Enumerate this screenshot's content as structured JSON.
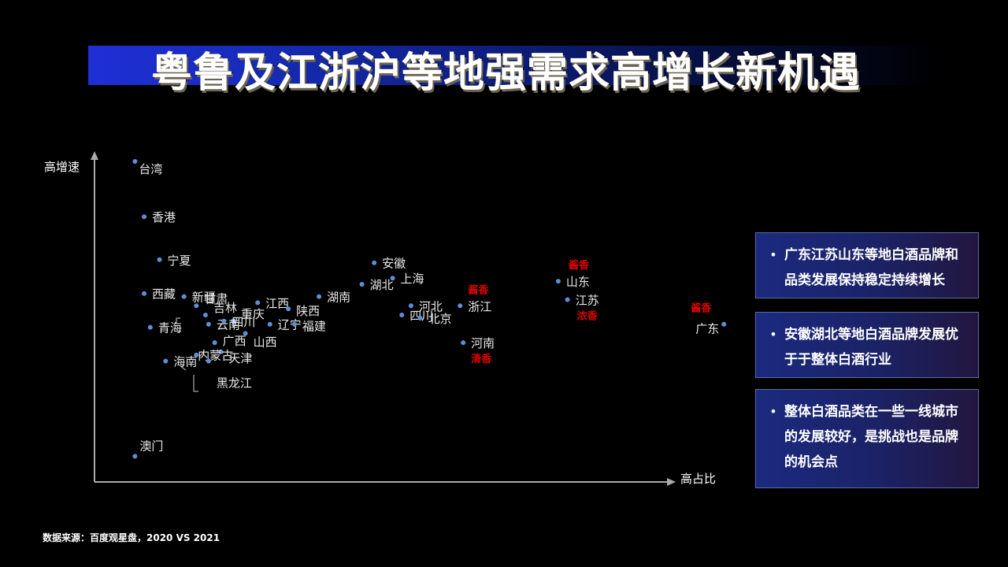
{
  "title": "粤鲁及江浙沪等地强需求高增长新机遇",
  "chart_data": {
    "type": "scatter",
    "xlabel": "高占比",
    "ylabel": "高增速",
    "xlim": [
      0,
      100
    ],
    "ylim": [
      0,
      100
    ],
    "points": [
      {
        "name": "台湾",
        "x": 3,
        "y": 100
      },
      {
        "name": "香港",
        "x": 4.5,
        "y": 82
      },
      {
        "name": "宁夏",
        "x": 7,
        "y": 68
      },
      {
        "name": "西藏",
        "x": 4.5,
        "y": 57
      },
      {
        "name": "新疆",
        "x": 11,
        "y": 56
      },
      {
        "name": "甘肃",
        "x": 13,
        "y": 53
      },
      {
        "name": "吉林",
        "x": 14.5,
        "y": 50
      },
      {
        "name": "重庆",
        "x": 19,
        "y": 48
      },
      {
        "name": "青海",
        "x": 5.5,
        "y": 46
      },
      {
        "name": "云南",
        "x": 15,
        "y": 47
      },
      {
        "name": "四川",
        "x": 17.5,
        "y": 48
      },
      {
        "name": "广西",
        "x": 16,
        "y": 41
      },
      {
        "name": "天津",
        "x": 17,
        "y": 38
      },
      {
        "name": "山西",
        "x": 21,
        "y": 44
      },
      {
        "name": "江西",
        "x": 23,
        "y": 54
      },
      {
        "name": "陕西",
        "x": 28,
        "y": 52
      },
      {
        "name": "辽宁",
        "x": 25,
        "y": 47
      },
      {
        "name": "福建",
        "x": 29,
        "y": 47
      },
      {
        "name": "湖南",
        "x": 33,
        "y": 56
      },
      {
        "name": "安徽",
        "x": 42,
        "y": 67
      },
      {
        "name": "湖北",
        "x": 40,
        "y": 60
      },
      {
        "name": "上海",
        "x": 45,
        "y": 62
      },
      {
        "name": "河北",
        "x": 48,
        "y": 53
      },
      {
        "name": "四川",
        "x": 46.5,
        "y": 50
      },
      {
        "name": "北京",
        "x": 49.5,
        "y": 49
      },
      {
        "name": "浙江",
        "x": 56,
        "y": 53
      },
      {
        "name": "河南",
        "x": 56.5,
        "y": 41
      },
      {
        "name": "山东",
        "x": 72,
        "y": 61
      },
      {
        "name": "江苏",
        "x": 73.5,
        "y": 55
      },
      {
        "name": "广东",
        "x": 99,
        "y": 47
      },
      {
        "name": "海南",
        "x": 8,
        "y": 35
      },
      {
        "name": "内蒙古",
        "x": 13,
        "y": 37
      },
      {
        "name": "黑龙江",
        "x": 15,
        "y": 35
      },
      {
        "name": "澳门",
        "x": 3,
        "y": 4
      }
    ],
    "annotations": [
      {
        "text": "酱香",
        "near": "浙江",
        "position": "above"
      },
      {
        "text": "清香",
        "near": "河南",
        "position": "below"
      },
      {
        "text": "酱香",
        "near": "山东",
        "position": "above"
      },
      {
        "text": "浓香",
        "near": "江苏",
        "position": "below"
      },
      {
        "text": "酱香",
        "near": "广东",
        "position": "above"
      }
    ]
  },
  "panels": [
    {
      "text": "广东江苏山东等地白酒品牌和品类发展保持稳定持续增长"
    },
    {
      "text": "安徽湖北等地白酒品牌发展优于于整体白酒行业"
    },
    {
      "text": "整体白酒品类在一些一线城市的发展较好，是挑战也是品牌的机会点"
    }
  ],
  "bullet": "•",
  "source": "数据来源：百度观星盘，2020 VS 2021"
}
